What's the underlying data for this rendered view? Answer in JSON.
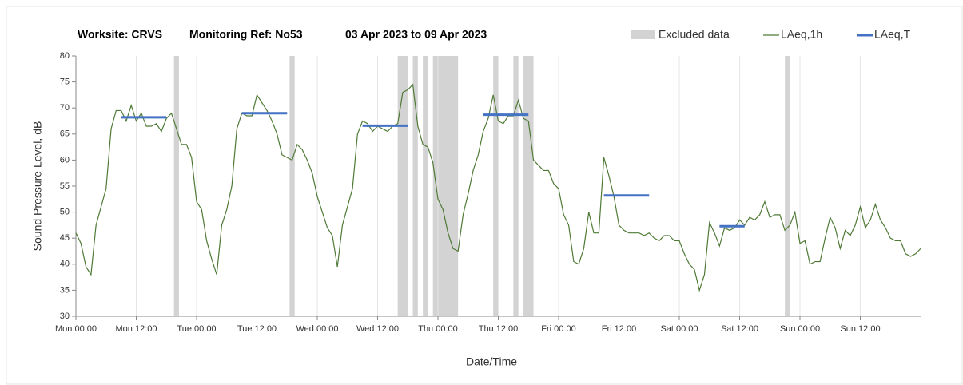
{
  "chart_data": {
    "type": "line",
    "worksite": "Worksite: CRVS",
    "monitoring_ref": "Monitoring Ref: No53",
    "period": "03 Apr 2023 to 09 Apr 2023",
    "xlabel": "Date/Time",
    "ylabel": "Sound Pressure Level, dB",
    "xlim": [
      0,
      168
    ],
    "xticks": [
      {
        "value": 0,
        "label": "Mon 00:00"
      },
      {
        "value": 12,
        "label": "Mon 12:00"
      },
      {
        "value": 24,
        "label": "Tue 00:00"
      },
      {
        "value": 36,
        "label": "Tue 12:00"
      },
      {
        "value": 48,
        "label": "Wed 00:00"
      },
      {
        "value": 60,
        "label": "Wed 12:00"
      },
      {
        "value": 72,
        "label": "Thu 00:00"
      },
      {
        "value": 84,
        "label": "Thu 12:00"
      },
      {
        "value": 96,
        "label": "Fri 00:00"
      },
      {
        "value": 108,
        "label": "Fri 12:00"
      },
      {
        "value": 120,
        "label": "Sat 00:00"
      },
      {
        "value": 132,
        "label": "Sat 12:00"
      },
      {
        "value": 144,
        "label": "Sun 00:00"
      },
      {
        "value": 156,
        "label": "Sun 12:00"
      }
    ],
    "ylim": [
      30,
      80
    ],
    "yticks": [
      30,
      35,
      40,
      45,
      50,
      55,
      60,
      65,
      70,
      75,
      80
    ],
    "grid": "x",
    "excluded": {
      "name": "Excluded data",
      "color": "#d3d3d3",
      "ranges": [
        [
          19.5,
          20.5
        ],
        [
          42.5,
          43.5
        ],
        [
          64,
          66
        ],
        [
          67,
          68
        ],
        [
          69,
          70
        ],
        [
          71,
          76
        ],
        [
          83,
          84
        ],
        [
          87,
          88
        ],
        [
          89,
          91
        ],
        [
          141,
          142
        ]
      ]
    },
    "series": [
      {
        "name": "LAeq,1h",
        "color": "#4f7a36",
        "x": [
          0,
          1,
          2,
          3,
          4,
          5,
          6,
          7,
          8,
          9,
          10,
          11,
          12,
          13,
          14,
          15,
          16,
          17,
          18,
          19,
          20,
          21,
          22,
          23,
          24,
          25,
          26,
          27,
          28,
          29,
          30,
          31,
          32,
          33,
          34,
          35,
          36,
          37,
          38,
          39,
          40,
          41,
          42,
          43,
          44,
          45,
          46,
          47,
          48,
          49,
          50,
          51,
          52,
          53,
          54,
          55,
          56,
          57,
          58,
          59,
          60,
          61,
          62,
          63,
          64,
          65,
          66,
          67,
          68,
          69,
          70,
          71,
          72,
          73,
          74,
          75,
          76,
          77,
          78,
          79,
          80,
          81,
          82,
          83,
          84,
          85,
          86,
          87,
          88,
          89,
          90,
          91,
          92,
          93,
          94,
          95,
          96,
          97,
          98,
          99,
          100,
          101,
          102,
          103,
          104,
          105,
          106,
          107,
          108,
          109,
          110,
          111,
          112,
          113,
          114,
          115,
          116,
          117,
          118,
          119,
          120,
          121,
          122,
          123,
          124,
          125,
          126,
          127,
          128,
          129,
          130,
          131,
          132,
          133,
          134,
          135,
          136,
          137,
          138,
          139,
          140,
          141,
          142,
          143,
          144,
          145,
          146,
          147,
          148,
          149,
          150,
          151,
          152,
          153,
          154,
          155,
          156,
          157,
          158,
          159,
          160,
          161,
          162,
          163,
          164,
          165,
          166,
          167,
          168
        ],
        "values": [
          46,
          44,
          39.5,
          38,
          47.5,
          51,
          54.5,
          66,
          69.5,
          69.5,
          67.5,
          70.5,
          67.5,
          69,
          66.5,
          66.5,
          67,
          65.5,
          68,
          69,
          66,
          63,
          63,
          60.5,
          52,
          50.5,
          44.5,
          41,
          38,
          47.5,
          50.5,
          55,
          66,
          69,
          68.5,
          68.5,
          72.5,
          71,
          69.5,
          67.5,
          65,
          61,
          60.5,
          60,
          63,
          62,
          60,
          57.5,
          53,
          50,
          47,
          45.5,
          39.5,
          47.5,
          51,
          54.5,
          65,
          67.5,
          67,
          65.5,
          66.5,
          66,
          65.5,
          66.5,
          67,
          73,
          73.5,
          74.5,
          66.5,
          63,
          62.5,
          59.5,
          52.5,
          50.5,
          46,
          43,
          42.5,
          49.5,
          53.5,
          58,
          61,
          65.5,
          68,
          72.5,
          67.5,
          67,
          68.5,
          68.5,
          71.5,
          68,
          67.5,
          60,
          59,
          58,
          58,
          55.5,
          54.5,
          49.5,
          47.5,
          40.5,
          40,
          43,
          50,
          46,
          46,
          60.5,
          57,
          53,
          47.5,
          46.5,
          46,
          46,
          46,
          45.5,
          46,
          45,
          44.5,
          45.5,
          45.5,
          44.5,
          44.5,
          42,
          40,
          39,
          35,
          38,
          48,
          46,
          43.5,
          47,
          46.5,
          47,
          48.5,
          47.5,
          49,
          48.5,
          49.5,
          52,
          49,
          49.5,
          49.5,
          46.5,
          47.5,
          50,
          44,
          44.5,
          40,
          40.5,
          40.5,
          45,
          49,
          47,
          43,
          46.5,
          45.5,
          47.5,
          51,
          47,
          48.5,
          51.5,
          48.5,
          47,
          45,
          44.5,
          44.5,
          42,
          41.5,
          42,
          43
        ]
      },
      {
        "name": "LAeq,T",
        "color": "#4472c4",
        "segments": [
          {
            "start": 9,
            "end": 18,
            "value": 68.2
          },
          {
            "start": 33,
            "end": 42,
            "value": 69
          },
          {
            "start": 57,
            "end": 66,
            "value": 66.6
          },
          {
            "start": 81,
            "end": 90,
            "value": 68.7
          },
          {
            "start": 105,
            "end": 114,
            "value": 53.2
          },
          {
            "start": 128,
            "end": 133,
            "value": 47.3
          }
        ]
      }
    ]
  }
}
